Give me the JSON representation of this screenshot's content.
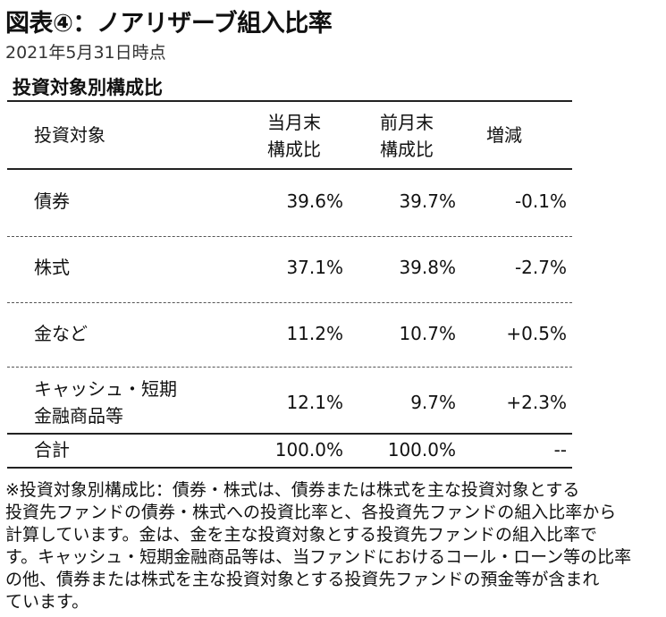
{
  "title": "図表④：ノアリザーブ組入比率",
  "date": "2021年5月31日時点",
  "section_title": "投資対象別構成比",
  "table": {
    "headers": {
      "target": "投資対象",
      "current_line1": "当月末",
      "current_line2": "構成比",
      "previous_line1": "前月末",
      "previous_line2": "構成比",
      "change": "増減"
    },
    "rows": [
      {
        "target_line1": "債券",
        "target_line2": "",
        "current": "39.6%",
        "previous": "39.7%",
        "change": "-0.1%"
      },
      {
        "target_line1": "株式",
        "target_line2": "",
        "current": "37.1%",
        "previous": "39.8%",
        "change": "-2.7%"
      },
      {
        "target_line1": "金など",
        "target_line2": "",
        "current": "11.2%",
        "previous": "10.7%",
        "change": "+0.5%"
      },
      {
        "target_line1": "キャッシュ・短期",
        "target_line2": "金融商品等",
        "current": "12.1%",
        "previous": "9.7%",
        "change": "+2.3%"
      }
    ],
    "total": {
      "label": "合計",
      "current": "100.0%",
      "previous": "100.0%",
      "change": "--"
    }
  },
  "note_lines": [
    "※投資対象別構成比：債券・株式は、債券または株式を主な投資対象とする",
    "投資先ファンドの債券・株式への投資比率と、各投資先ファンドの組入比率から",
    "計算しています。金は、金を主な投資対象とする投資先ファンドの組入比率で",
    "す。キャッシュ・短期金融商品等は、当ファンドにおけるコール・ローン等の比率",
    "の他、債券または株式を主な投資対象とする投資先ファンドの預金等が含まれ",
    "ています。"
  ]
}
